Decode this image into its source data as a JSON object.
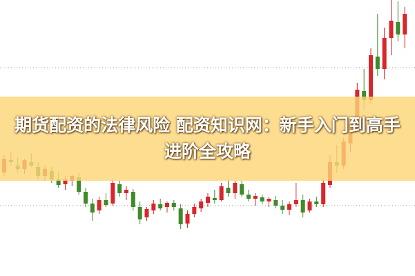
{
  "chart_data": {
    "type": "candlestick",
    "title": "期货配资的法律风险 配资知识网：新手入门到高手进阶全攻略",
    "ylim": [
      0,
      400
    ],
    "up_color": "#d9262a",
    "down_color": "#3f8a2a",
    "open": [
      150,
      168,
      160,
      155,
      165,
      158,
      145,
      152,
      140,
      133,
      138,
      143,
      122,
      105,
      95,
      110,
      105,
      133,
      120,
      122,
      100,
      85,
      95,
      104,
      100,
      106,
      98,
      76,
      90,
      98,
      106,
      113,
      110,
      128,
      120,
      133,
      118,
      112,
      114,
      108,
      110,
      102,
      96,
      104,
      110,
      95,
      108,
      104,
      132,
      165,
      160,
      192,
      218,
      268,
      255,
      318,
      300,
      345,
      368,
      350
    ],
    "high": [
      175,
      180,
      172,
      170,
      178,
      165,
      160,
      158,
      150,
      145,
      148,
      150,
      128,
      112,
      115,
      120,
      140,
      138,
      130,
      126,
      108,
      100,
      110,
      112,
      108,
      110,
      104,
      95,
      105,
      112,
      120,
      125,
      135,
      140,
      138,
      138,
      125,
      120,
      118,
      115,
      116,
      110,
      108,
      135,
      118,
      112,
      115,
      140,
      175,
      190,
      200,
      230,
      280,
      300,
      330,
      380,
      360,
      400,
      398,
      390
    ],
    "low": [
      145,
      160,
      150,
      148,
      158,
      140,
      138,
      135,
      128,
      125,
      130,
      118,
      100,
      80,
      90,
      100,
      102,
      115,
      110,
      95,
      75,
      80,
      90,
      95,
      92,
      95,
      68,
      70,
      85,
      93,
      100,
      105,
      108,
      115,
      112,
      115,
      108,
      102,
      104,
      100,
      98,
      90,
      88,
      100,
      85,
      92,
      100,
      100,
      128,
      150,
      155,
      180,
      210,
      240,
      250,
      290,
      285,
      320,
      340,
      330
    ],
    "close": [
      170,
      165,
      155,
      168,
      160,
      145,
      155,
      140,
      132,
      140,
      145,
      122,
      105,
      92,
      110,
      103,
      135,
      120,
      125,
      100,
      82,
      97,
      105,
      98,
      106,
      100,
      75,
      90,
      100,
      108,
      115,
      110,
      130,
      120,
      135,
      118,
      112,
      116,
      108,
      112,
      102,
      96,
      104,
      110,
      92,
      108,
      104,
      135,
      165,
      160,
      195,
      220,
      270,
      255,
      320,
      300,
      345,
      370,
      350,
      380
    ]
  }
}
